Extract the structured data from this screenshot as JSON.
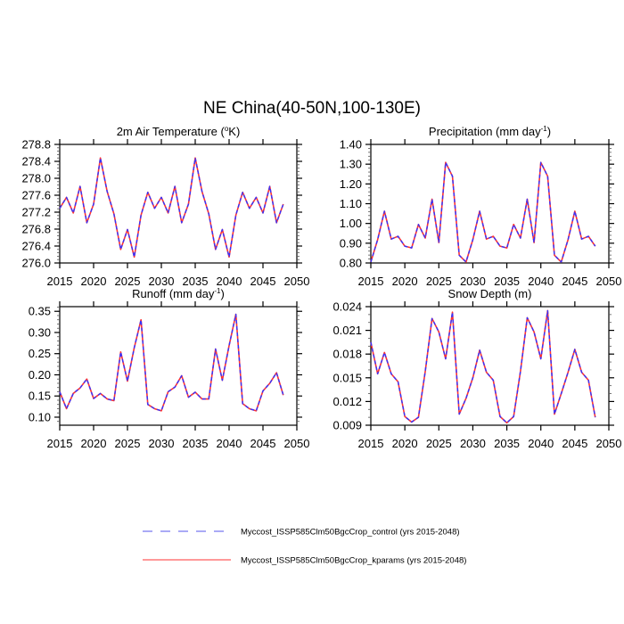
{
  "title": "NE China(40-50N,100-130E)",
  "colors": {
    "control": "#3333ff",
    "kparams": "#ff3333",
    "axis": "#000000"
  },
  "legend": {
    "placement": "bottom-center",
    "items": [
      {
        "label": "Myccost_ISSP585Clm50BgcCrop_control (yrs 2015-2048)",
        "style": "dashed",
        "color": "#5555ee"
      },
      {
        "label": "Myccost_ISSP585Clm50BgcCrop_kparams (yrs 2015-2048)",
        "style": "solid",
        "color": "#ff3333"
      }
    ]
  },
  "chart_data": [
    {
      "type": "line",
      "title_main": "2m Air Temperature (",
      "title_sup": "o",
      "title_end": "K)",
      "xlim": [
        2015,
        2050
      ],
      "xticks": [
        "2015",
        "2020",
        "2025",
        "2030",
        "2035",
        "2040",
        "2045",
        "2050"
      ],
      "ylim": [
        276.0,
        278.8
      ],
      "yticks": [
        "276.0",
        "276.4",
        "276.8",
        "277.2",
        "277.6",
        "278.0",
        "278.4",
        "278.8"
      ],
      "yminor": 0.08,
      "x_start": 2015,
      "series": [
        {
          "name": "control",
          "values": [
            277.29,
            277.55,
            277.18,
            277.81,
            276.95,
            277.39,
            278.48,
            277.69,
            277.16,
            276.32,
            276.79,
            276.14,
            277.13,
            277.67,
            277.29,
            277.55,
            277.18,
            277.81,
            276.95,
            277.39,
            278.48,
            277.69,
            277.16,
            276.32,
            276.79,
            276.14,
            277.13,
            277.67,
            277.29,
            277.55,
            277.18,
            277.81,
            276.95,
            277.39
          ]
        },
        {
          "name": "kparams",
          "values": [
            277.29,
            277.55,
            277.18,
            277.81,
            276.95,
            277.39,
            278.48,
            277.69,
            277.16,
            276.32,
            276.79,
            276.14,
            277.13,
            277.67,
            277.29,
            277.55,
            277.18,
            277.81,
            276.95,
            277.39,
            278.48,
            277.69,
            277.16,
            276.32,
            276.79,
            276.14,
            277.13,
            277.67,
            277.29,
            277.55,
            277.18,
            277.81,
            276.95,
            277.39
          ]
        }
      ]
    },
    {
      "type": "line",
      "title_main": "Precipitation (mm day",
      "title_sup": "-1",
      "title_end": ")",
      "xlim": [
        2015,
        2050
      ],
      "xticks": [
        "2015",
        "2020",
        "2025",
        "2030",
        "2035",
        "2040",
        "2045",
        "2050"
      ],
      "ylim": [
        0.8,
        1.4
      ],
      "yticks": [
        "0.80",
        "0.90",
        "1.00",
        "1.10",
        "1.20",
        "1.30",
        "1.40"
      ],
      "yminor": 0.02,
      "x_start": 2015,
      "series": [
        {
          "name": "control",
          "values": [
            0.805,
            0.918,
            1.062,
            0.921,
            0.935,
            0.885,
            0.876,
            0.995,
            0.926,
            1.123,
            0.903,
            1.309,
            1.239,
            0.839,
            0.805,
            0.918,
            1.062,
            0.921,
            0.935,
            0.885,
            0.876,
            0.995,
            0.926,
            1.123,
            0.903,
            1.309,
            1.239,
            0.839,
            0.805,
            0.918,
            1.062,
            0.921,
            0.935,
            0.885
          ]
        },
        {
          "name": "kparams",
          "values": [
            0.805,
            0.918,
            1.062,
            0.921,
            0.935,
            0.885,
            0.876,
            0.995,
            0.926,
            1.123,
            0.903,
            1.309,
            1.239,
            0.839,
            0.805,
            0.918,
            1.062,
            0.921,
            0.935,
            0.885,
            0.876,
            0.995,
            0.926,
            1.123,
            0.903,
            1.309,
            1.239,
            0.839,
            0.805,
            0.918,
            1.062,
            0.921,
            0.935,
            0.885
          ]
        }
      ]
    },
    {
      "type": "line",
      "title_main": "Runoff (mm day",
      "title_sup": "-1",
      "title_end": ")",
      "xlim": [
        2015,
        2050
      ],
      "xticks": [
        "2015",
        "2020",
        "2025",
        "2030",
        "2035",
        "2040",
        "2045",
        "2050"
      ],
      "ylim": [
        0.081,
        0.361
      ],
      "yticks": [
        "0.10",
        "0.15",
        "0.20",
        "0.25",
        "0.30",
        "0.35"
      ],
      "yminor": 0.01,
      "x_start": 2015,
      "series": [
        {
          "name": "control",
          "values": [
            0.16,
            0.12,
            0.156,
            0.169,
            0.19,
            0.144,
            0.156,
            0.143,
            0.139,
            0.254,
            0.185,
            0.264,
            0.33,
            0.13,
            0.12,
            0.115,
            0.16,
            0.171,
            0.198,
            0.147,
            0.159,
            0.143,
            0.143,
            0.261,
            0.187,
            0.269,
            0.343,
            0.132,
            0.12,
            0.115,
            0.162,
            0.18,
            0.205,
            0.152
          ]
        },
        {
          "name": "kparams",
          "values": [
            0.16,
            0.12,
            0.156,
            0.169,
            0.19,
            0.144,
            0.156,
            0.143,
            0.139,
            0.254,
            0.185,
            0.264,
            0.33,
            0.13,
            0.12,
            0.115,
            0.16,
            0.171,
            0.198,
            0.147,
            0.159,
            0.143,
            0.143,
            0.261,
            0.187,
            0.269,
            0.343,
            0.132,
            0.12,
            0.115,
            0.162,
            0.18,
            0.205,
            0.152
          ]
        }
      ]
    },
    {
      "type": "line",
      "title_main": "Snow Depth (m)",
      "title_sup": "",
      "title_end": "",
      "xlim": [
        2015,
        2050
      ],
      "xticks": [
        "2015",
        "2020",
        "2025",
        "2030",
        "2035",
        "2040",
        "2045",
        "2050"
      ],
      "ylim": [
        0.009,
        0.024
      ],
      "yticks": [
        "0.009",
        "0.012",
        "0.015",
        "0.018",
        "0.021",
        "0.024"
      ],
      "yminor": 0.001,
      "x_start": 2015,
      "series": [
        {
          "name": "control",
          "values": [
            0.0195,
            0.0155,
            0.0182,
            0.0155,
            0.0145,
            0.0101,
            0.0094,
            0.01,
            0.0158,
            0.0225,
            0.0208,
            0.0174,
            0.0233,
            0.0104,
            0.0124,
            0.015,
            0.0185,
            0.0157,
            0.0147,
            0.0101,
            0.0093,
            0.0101,
            0.0158,
            0.0226,
            0.0208,
            0.0174,
            0.0235,
            0.0104,
            0.013,
            0.0157,
            0.0186,
            0.0157,
            0.0147,
            0.01
          ]
        },
        {
          "name": "kparams",
          "values": [
            0.0195,
            0.0155,
            0.0182,
            0.0155,
            0.0145,
            0.0101,
            0.0094,
            0.01,
            0.0158,
            0.0225,
            0.0208,
            0.0174,
            0.0233,
            0.0104,
            0.0124,
            0.015,
            0.0185,
            0.0157,
            0.0147,
            0.0101,
            0.0093,
            0.0101,
            0.0158,
            0.0226,
            0.0208,
            0.0174,
            0.0235,
            0.0104,
            0.013,
            0.0157,
            0.0186,
            0.0157,
            0.0147,
            0.01
          ]
        }
      ]
    }
  ]
}
